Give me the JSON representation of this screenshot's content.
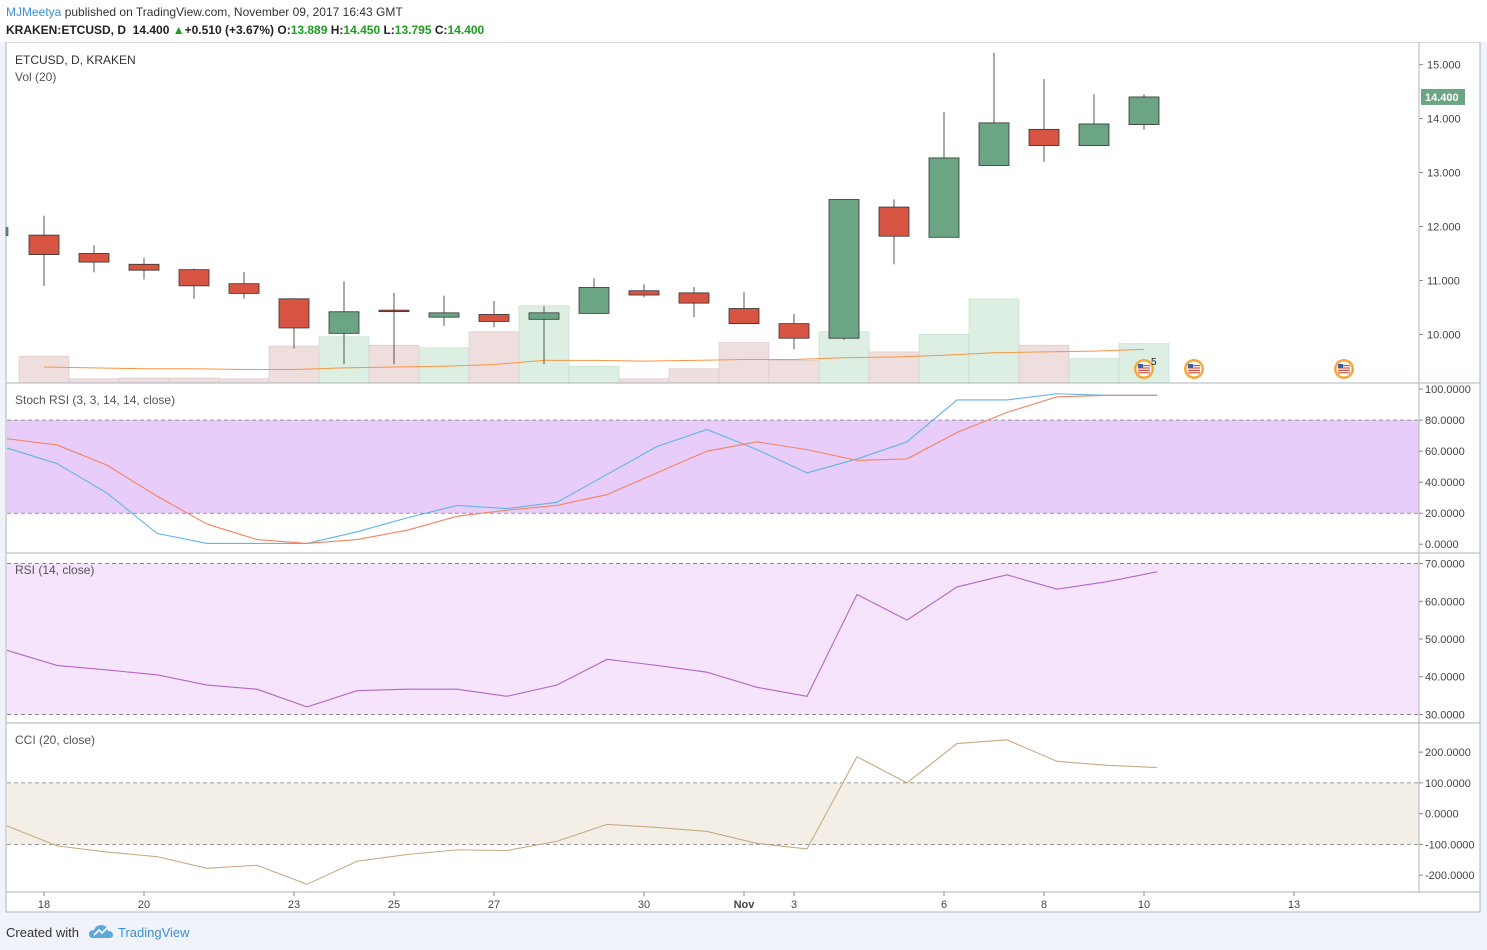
{
  "header": {
    "author": "MJMeetya",
    "published_text": " published on TradingView.com, November 09, 2017 16:43 GMT",
    "symbol_line": "KRAKEN:ETCUSD, D",
    "last": "14.400",
    "arrow": "▲",
    "change": "+0.510 (+3.67%)",
    "o_label": "O:",
    "o_value": "13.889",
    "h_label": "H:",
    "h_value": "14.450",
    "l_label": "L:",
    "l_value": "13.795",
    "c_label": "C:",
    "c_value": "14.400"
  },
  "panes": {
    "price_title": "ETCUSD, D, KRAKEN",
    "vol_title": "Vol (20)",
    "stoch_title": "Stoch RSI (3, 3, 14, 14, close)",
    "rsi_title": "RSI (14, close)",
    "cci_title": "CCI (20, close)",
    "last_price_badge": "14.400",
    "event_badge_count": "5"
  },
  "footer": {
    "created_with": "Created with",
    "brand": "TradingView"
  },
  "colors": {
    "up": "#6ba583",
    "down": "#d75442",
    "vol_up": "#dcefe2",
    "vol_down": "#efdede",
    "vol_ma": "#f79646",
    "stoch_k": "#5fb4e9",
    "stoch_d": "#f5835f",
    "stoch_band": "#e8cdfa",
    "rsi_line": "#b467c7",
    "rsi_band": "#f5e4fb",
    "cci_line": "#c8a982",
    "cci_band": "#f4efe6",
    "accent": "#3c8fd8"
  },
  "chart_data": [
    {
      "type": "candlestick",
      "x_ticks": [
        "18",
        "20",
        "23",
        "25",
        "27",
        "30",
        "Nov",
        "3",
        "6",
        "8",
        "10",
        "13"
      ],
      "y_ticks": [
        "10.000",
        "11.000",
        "12.000",
        "13.000",
        "14.000",
        "15.000"
      ],
      "ylim": [
        9.1,
        15.4
      ],
      "candles": [
        {
          "d": "2017-10-18",
          "o": 11.84,
          "h": 12.2,
          "l": 10.9,
          "c": 11.48
        },
        {
          "d": "2017-10-19",
          "o": 11.5,
          "h": 11.65,
          "l": 11.15,
          "c": 11.34
        },
        {
          "d": "2017-10-20",
          "o": 11.3,
          "h": 11.42,
          "l": 11.02,
          "c": 11.19
        },
        {
          "d": "2017-10-21",
          "o": 11.2,
          "h": 11.22,
          "l": 10.66,
          "c": 10.9
        },
        {
          "d": "2017-10-22",
          "o": 10.94,
          "h": 11.16,
          "l": 10.66,
          "c": 10.76
        },
        {
          "d": "2017-10-23",
          "o": 10.66,
          "h": 10.67,
          "l": 9.74,
          "c": 10.12
        },
        {
          "d": "2017-10-24",
          "o": 10.02,
          "h": 10.98,
          "l": 9.45,
          "c": 10.42
        },
        {
          "d": "2017-10-25",
          "o": 10.45,
          "h": 10.77,
          "l": 9.45,
          "c": 10.43
        },
        {
          "d": "2017-10-26",
          "o": 10.32,
          "h": 10.72,
          "l": 10.16,
          "c": 10.4
        },
        {
          "d": "2017-10-27",
          "o": 10.37,
          "h": 10.62,
          "l": 10.13,
          "c": 10.24
        },
        {
          "d": "2017-10-28",
          "o": 10.28,
          "h": 10.52,
          "l": 9.45,
          "c": 10.4
        },
        {
          "d": "2017-10-29",
          "o": 10.39,
          "h": 11.04,
          "l": 10.39,
          "c": 10.87
        },
        {
          "d": "2017-10-30",
          "o": 10.81,
          "h": 10.93,
          "l": 10.69,
          "c": 10.73
        },
        {
          "d": "2017-10-31",
          "o": 10.77,
          "h": 10.88,
          "l": 10.32,
          "c": 10.58
        },
        {
          "d": "2017-11-01",
          "o": 10.48,
          "h": 10.78,
          "l": 10.2,
          "c": 10.2
        },
        {
          "d": "2017-11-02",
          "o": 10.2,
          "h": 10.38,
          "l": 9.72,
          "c": 9.93
        },
        {
          "d": "2017-11-03",
          "o": 9.93,
          "h": 12.5,
          "l": 9.9,
          "c": 12.5
        },
        {
          "d": "2017-11-04",
          "o": 12.36,
          "h": 12.5,
          "l": 11.3,
          "c": 11.82
        },
        {
          "d": "2017-11-05",
          "o": 11.8,
          "h": 14.12,
          "l": 11.8,
          "c": 13.27
        },
        {
          "d": "2017-11-06",
          "o": 13.13,
          "h": 15.22,
          "l": 13.13,
          "c": 13.92
        },
        {
          "d": "2017-11-07",
          "o": 13.8,
          "h": 14.73,
          "l": 13.2,
          "c": 13.5
        },
        {
          "d": "2017-11-08",
          "o": 13.5,
          "h": 14.45,
          "l": 13.5,
          "c": 13.9
        },
        {
          "d": "2017-11-09",
          "o": 13.889,
          "h": 14.45,
          "l": 13.795,
          "c": 14.4
        }
      ]
    },
    {
      "type": "bar",
      "name": "Vol (20)",
      "values": [
        0.32,
        0.05,
        0.06,
        0.06,
        0.05,
        0.44,
        0.55,
        0.45,
        0.42,
        0.61,
        0.92,
        0.2,
        0.05,
        0.17,
        0.48,
        0.27,
        0.61,
        0.37,
        0.58,
        1.0,
        0.45,
        0.29,
        0.47
      ],
      "ma": [
        0.19,
        0.18,
        0.17,
        0.17,
        0.16,
        0.16,
        0.18,
        0.19,
        0.2,
        0.22,
        0.27,
        0.27,
        0.26,
        0.27,
        0.28,
        0.28,
        0.3,
        0.31,
        0.33,
        0.36,
        0.37,
        0.38,
        0.4
      ]
    },
    {
      "type": "line",
      "x_ticks_shared": true,
      "y_ticks": [
        "0.0000",
        "20.0000",
        "40.0000",
        "60.0000",
        "80.0000",
        "100.0000"
      ],
      "ylim": [
        -5,
        102
      ],
      "band": [
        20,
        80
      ],
      "series": [
        {
          "name": "K",
          "values": [
            62,
            52,
            33,
            7,
            0.5,
            0.5,
            0.5,
            8,
            17,
            25,
            23,
            27,
            45,
            63,
            74,
            61,
            46,
            55,
            66,
            93,
            93,
            97,
            96,
            96
          ]
        },
        {
          "name": "D",
          "values": [
            68,
            64,
            51,
            31,
            13,
            3,
            0.5,
            3,
            9,
            18,
            22,
            25,
            32,
            46,
            60,
            66,
            61,
            54,
            55,
            72,
            85,
            95,
            96,
            96
          ]
        }
      ]
    },
    {
      "type": "line",
      "y_ticks": [
        "30.0000",
        "40.0000",
        "50.0000",
        "60.0000",
        "70.0000"
      ],
      "ylim": [
        28,
        72
      ],
      "band": [
        30,
        70
      ],
      "series": [
        {
          "name": "RSI",
          "values": [
            47,
            43,
            41.8,
            40.5,
            37.8,
            36.7,
            32,
            36.3,
            36.7,
            36.7,
            34.8,
            37.8,
            44.6,
            43,
            41.2,
            37.2,
            34.8,
            61.8,
            55,
            63.8,
            67,
            63.2,
            65.2,
            67.8
          ]
        }
      ]
    },
    {
      "type": "line",
      "y_ticks": [
        "-200.0000",
        "-100.0000",
        "0.0000",
        "100.0000",
        "200.0000"
      ],
      "ylim": [
        -255,
        285
      ],
      "band": [
        -100,
        100
      ],
      "series": [
        {
          "name": "CCI",
          "values": [
            -40,
            -105,
            -125,
            -140,
            -178,
            -168,
            -230,
            -155,
            -133,
            -118,
            -120,
            -90,
            -35,
            -45,
            -58,
            -97,
            -115,
            185,
            100,
            228,
            240,
            170,
            157,
            150
          ]
        }
      ]
    }
  ]
}
